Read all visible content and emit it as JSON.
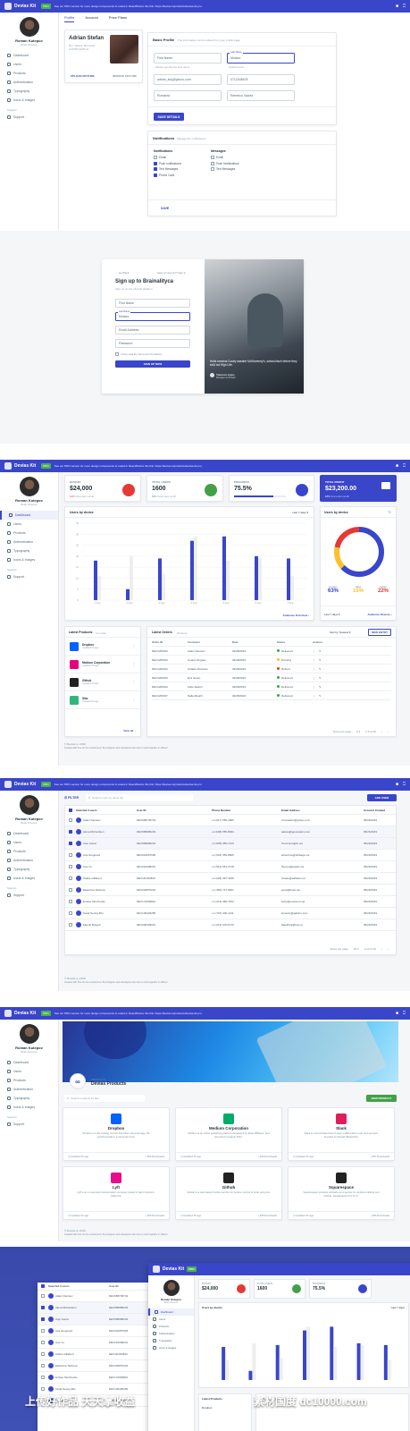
{
  "app": {
    "brand": "Devias Kit",
    "pro_badge": "PRO",
    "promo": "See our PRO version for more design components & coded in React/Redux this link: https://devias.io/products/devias-kit-pro",
    "user_name": "Roman Kutepov",
    "user_role": "Brain Director"
  },
  "sidebar": {
    "items": [
      "Dashboard",
      "Users",
      "Products",
      "Authentication",
      "Typography",
      "Icons & Images"
    ],
    "support_group": "Support",
    "support_item": "Support"
  },
  "account": {
    "tabs": [
      "Profile",
      "Account",
      "Price Plans"
    ],
    "profile_name": "Adrian Stefan",
    "profile_line1": "Rm. Valcea, Romania",
    "profile_line2": "4:32PM (GMT-4)",
    "upload_label": "UPLOAD PICTURE",
    "remove_label": "REMOVE PICTURE",
    "basic_title": "Basic Profile",
    "basic_sub": "The information can be edited from your profile page",
    "first_name_ph": "First Name",
    "last_name_label": "Last Name",
    "last_name_value": "Moisea",
    "last_name_helper": "Invalid name",
    "first_name_helper": "Please specify the first name",
    "email_value": "adrian_stoj@yahoo.com",
    "phone_value": "0712345678",
    "country_value": "Romania",
    "city_value": "Ramnicu Valcea",
    "save_label": "SAVE DETAILS",
    "notif_title": "Notifications",
    "notif_sub": "Manage the notifications",
    "col1_title": "Notifications",
    "col1": [
      {
        "label": "Email",
        "checked": false
      },
      {
        "label": "Push notifications",
        "checked": true
      },
      {
        "label": "Text Messages",
        "checked": true
      },
      {
        "label": "Phone Calls",
        "checked": true
      }
    ],
    "col2_title": "Messages",
    "col2": [
      {
        "label": "Email",
        "checked": false
      },
      {
        "label": "Push Notifications",
        "checked": false
      },
      {
        "label": "Text Messages",
        "checked": false
      }
    ],
    "notif_save": "SAVE"
  },
  "signup": {
    "back": "Go Back",
    "have_account": "Have an account? Sign in",
    "title": "Sign up to Brainalityca",
    "sub": "Sign up on the internal platform",
    "first": "First Name",
    "last_label": "Last Name",
    "last_value": "Moisea",
    "email": "Email Address",
    "password": "Password",
    "terms": "I have read the Terms and Conditions",
    "button": "SIGN UP NOW",
    "quote": "Hella narwhal Cosby sweater McSweeney's, salvia kitsch before they sold out High Life.",
    "quote_author": "Takamaru Ayako",
    "quote_role": "Manager at inVision"
  },
  "dashboard": {
    "stats": [
      {
        "caption": "BUDGET",
        "value": "$24,000",
        "diff": "12%",
        "diff_text": "Since last month",
        "color": "#e53935"
      },
      {
        "caption": "TOTAL USERS",
        "value": "1600",
        "diff": "16%",
        "diff_text": "Since last month",
        "color": "#43a047"
      },
      {
        "caption": "PROGRESS",
        "value": "75.5%",
        "diff": "",
        "diff_text": "",
        "color": "#3a46c9",
        "progress": 0.755
      },
      {
        "caption": "TOTAL PROFIT",
        "value": "$23,200.00",
        "diff": "18%",
        "diff_text": "Since last month",
        "color": "#ffffff"
      }
    ],
    "bar_title": "Users by device",
    "bar_filter": "Last 7 days",
    "bar_link": "Audience Overview",
    "donut_title": "Users by device",
    "donut_filter": "Last 7 days",
    "donut_link": "Audience Devices",
    "donut_labels": [
      "Desktop",
      "Tablet",
      "Mobile"
    ],
    "donut_values": [
      "63%",
      "15%",
      "22%"
    ],
    "products_title": "Latest Products",
    "products_total": "4 in total",
    "products": [
      {
        "name": "Dropbox",
        "time": "Updated 2h ago",
        "color": "#0061ff"
      },
      {
        "name": "Medium Corporation",
        "time": "Updated 2h ago",
        "color": "#e6007e"
      },
      {
        "name": "Github",
        "time": "Updated 2h ago",
        "color": "#222222"
      },
      {
        "name": "Slac",
        "time": "Updated 2h ago",
        "color": "#2eb67d"
      }
    ],
    "products_link": "View all",
    "orders_title": "Latest Orders",
    "orders_total": "All items",
    "orders_sort": "Sort by: Newest",
    "orders_new": "NEW ENTRY",
    "orders_head": [
      "Order ID",
      "Customer",
      "Date",
      "Status",
      "Actions"
    ],
    "orders": [
      {
        "id": "DEV1209012",
        "customer": "Adam Denisov",
        "date": "04/28/2019",
        "status": "Delivered",
        "color": "#43a047"
      },
      {
        "id": "DEV1209013",
        "customer": "Amara Vergara",
        "date": "04/28/2019",
        "status": "Pending",
        "color": "#fbc02d"
      },
      {
        "id": "DEV1209014",
        "customer": "Chiaka Okonkwo",
        "date": "04/28/2019",
        "status": "Refund",
        "color": "#e53935"
      },
      {
        "id": "DEV1209015",
        "customer": "Emi Green",
        "date": "04/28/2019",
        "status": "Delivered",
        "color": "#43a047"
      },
      {
        "id": "DEV1209016",
        "customer": "Kaito Akachi",
        "date": "04/28/2019",
        "status": "Delivered",
        "color": "#43a047"
      },
      {
        "id": "DEV1209017",
        "customer": "Naila Maurih",
        "date": "04/28/2019",
        "status": "Delivered",
        "color": "#43a047"
      }
    ],
    "orders_footer": "Rows per page",
    "orders_range": "1-6 of 20",
    "copyright": "© Devias io. 2019",
    "credit": "Created with love for the environment. By designers and developers who love to work together in offices!"
  },
  "chart_data": {
    "type": "bar",
    "categories": [
      "1 Aug",
      "2 Aug",
      "3 Aug",
      "4 Aug",
      "5 Aug",
      "6 Aug",
      "7 Aug"
    ],
    "series": [
      {
        "name": "This year",
        "values": [
          18,
          5,
          19,
          27,
          29,
          20,
          19
        ]
      },
      {
        "name": "Last year",
        "values": [
          11,
          20,
          12,
          29,
          18,
          19,
          11
        ]
      }
    ],
    "xlabel": "",
    "ylabel": "",
    "ylim": [
      0,
      35
    ],
    "yticks": [
      0,
      5,
      10,
      15,
      20,
      25,
      30,
      35
    ],
    "grid": true
  },
  "users": {
    "filter": "FILTER",
    "search_ph": "Search users by name (S)",
    "add": "ADD USER",
    "head": [
      "Selected 3 users",
      "User ID",
      "Phone Number",
      "Email Address",
      "Account Created"
    ],
    "rows": [
      {
        "name": "Adam Denisov",
        "id": "DEV958745743",
        "phone": "+1 (917) 555-1800",
        "email": "nisovadam@yahoo.com",
        "created": "05/26/2019",
        "checked": false
      },
      {
        "name": "Alexa Richardson",
        "id": "DEV958985233",
        "phone": "+1 (648) 555-8934",
        "email": "aalexa@goesspain.com",
        "created": "05/26/2019",
        "checked": true
      },
      {
        "name": "Anje Keizer",
        "id": "DEV958985234",
        "phone": "+1 (905) 655-1723",
        "email": "zhuzcoma@ik.net",
        "created": "05/26/2019",
        "checked": true
      },
      {
        "name": "Ava Gregoraci",
        "id": "DEV001057935",
        "phone": "+1 (601) 555-8665",
        "email": "lehenhow@sibbage.me",
        "created": "05/26/2019",
        "checked": false
      },
      {
        "name": "Cao Yu",
        "id": "DEV210008231",
        "phone": "+1 (510) 661-2718",
        "email": "Taocyu@elpais.net",
        "created": "05/26/2019",
        "checked": false
      },
      {
        "name": "Clarke Gillebert",
        "id": "DEV111033810",
        "phone": "+1 (223) 097-3245",
        "email": "vhaste@edflehe.net",
        "created": "05/26/2019",
        "checked": false
      },
      {
        "name": "Ekaterina Tankova",
        "id": "DEV240870222",
        "phone": "+1 (450) 717-8021",
        "email": "pose@hsett.net",
        "created": "05/26/2019",
        "checked": false
      },
      {
        "name": "Emilee Simchenko",
        "id": "DEV172093810",
        "phone": "+1 (473) 066-4762",
        "email": "lurhy@newvemi.net",
        "created": "05/26/2019",
        "checked": false
      },
      {
        "name": "Kwak Seong-Min",
        "id": "DEV130426255",
        "phone": "+1 (707) 200-1311",
        "email": "kmwuzy@gabion.com",
        "created": "05/26/2019",
        "checked": false
      },
      {
        "name": "Merrile Burgett",
        "id": "DEV200429001",
        "phone": "+1 (213) 670-6716",
        "email": "fbauthreji@hq.net",
        "created": "05/26/2019",
        "checked": false
      }
    ],
    "footer": "Rows per page",
    "range": "1-10 of 20"
  },
  "products_page": {
    "kicker": "PRODUCTS",
    "title": "Devias Products",
    "search_ph": "Search products by title",
    "add": "NEW PRODUCT",
    "cards": [
      {
        "name": "Dropbox",
        "desc": "Dropbox is a file hosting service that offers cloud storage, file synchronization, a personal cloud.",
        "updated": "Updated 2h ago",
        "downloads": "594 Downloads",
        "color": "#0061ff"
      },
      {
        "name": "Medium Corporation",
        "desc": "Medium is an online publishing platform developed by Evan Williams, and launched in August 2012.",
        "updated": "Updated 2h ago",
        "downloads": "625 Downloads",
        "color": "#00ab6c"
      },
      {
        "name": "Slack",
        "desc": "Slack is a cloud-based set of team collaboration tools and services, founded by Stewart Butterfield.",
        "updated": "Updated 2h ago",
        "downloads": "857 Downloads",
        "color": "#e01e5a"
      },
      {
        "name": "Lyft",
        "desc": "Lyft is an on-demand transportation company based in San Francisco, California.",
        "updated": "Updated 2h ago",
        "downloads": "406 Downloads",
        "color": "#ea0b8c"
      },
      {
        "name": "Github",
        "desc": "GitHub is a web-based hosting service for version control of code using Git.",
        "updated": "Updated 2h ago",
        "downloads": "835 Downloads",
        "color": "#222222"
      },
      {
        "name": "Squarespace",
        "desc": "Squarespace provides software as a service for website building and hosting. Headquartered in NYC.",
        "updated": "Updated 2h ago",
        "downloads": "835 Downloads",
        "color": "#222222"
      }
    ]
  },
  "watermark": {
    "left": "上传好作品 天天拿收益",
    "right": "素材国度 dc10000.com"
  }
}
